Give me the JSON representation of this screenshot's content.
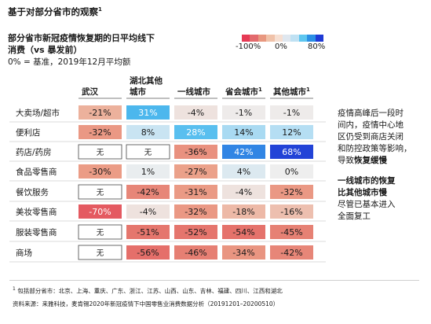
{
  "page": {
    "title": "基于对部分省市的观察",
    "title_superscript": "1"
  },
  "chart_data": {
    "type": "heatmap",
    "title": [
      "部分省市新冠疫情恢复期的日平均线下",
      "消费（vs 暴发前）"
    ],
    "subtitle": "0% = 基准，2019年12月平均额",
    "legend": {
      "ticks": [
        "-100%",
        "0%",
        "80%"
      ],
      "colors": [
        "#e63a55",
        "#e36a6d",
        "#e8977f",
        "#f0c2a9",
        "#f6dfd2",
        "#dfe7ef",
        "#bfe1f3",
        "#5dc6ef",
        "#2a8fe5",
        "#1f3ad5"
      ]
    },
    "columns": [
      {
        "label": "武汉",
        "superscript": ""
      },
      {
        "label": "湖北其他城市",
        "superscript": ""
      },
      {
        "label": "一线城市",
        "superscript": ""
      },
      {
        "label": "省会城市",
        "superscript": "1"
      },
      {
        "label": "其他城市",
        "superscript": "1"
      }
    ],
    "rows": [
      {
        "label": "大卖场/超市",
        "values": [
          -21,
          31,
          -4,
          -1,
          -1
        ],
        "text": [
          "-21%",
          "31%",
          "-4%",
          "-1%",
          "-1%"
        ]
      },
      {
        "label": "便利店",
        "values": [
          -32,
          8,
          28,
          14,
          12
        ],
        "text": [
          "-32%",
          "8%",
          "28%",
          "14%",
          "12%"
        ]
      },
      {
        "label": "药店/药房",
        "values": [
          null,
          null,
          -36,
          42,
          68
        ],
        "text": [
          "无",
          "无",
          "-36%",
          "42%",
          "68%"
        ]
      },
      {
        "label": "食品零售商",
        "values": [
          -30,
          1,
          -27,
          4,
          0
        ],
        "text": [
          "-30%",
          "1%",
          "-27%",
          "4%",
          "0%"
        ]
      },
      {
        "label": "餐饮服务",
        "values": [
          null,
          -42,
          -31,
          -4,
          -32
        ],
        "text": [
          "无",
          "-42%",
          "-31%",
          "-4%",
          "-32%"
        ]
      },
      {
        "label": "美妆零售商",
        "values": [
          -70,
          -4,
          -32,
          -18,
          -16
        ],
        "text": [
          "-70%",
          "-4%",
          "-32%",
          "-18%",
          "-16%"
        ]
      },
      {
        "label": "服装零售商",
        "values": [
          null,
          -51,
          -52,
          -54,
          -45
        ],
        "text": [
          "无",
          "-51%",
          "-52%",
          "-54%",
          "-45%"
        ]
      },
      {
        "label": "商场",
        "values": [
          null,
          -56,
          -46,
          -34,
          -42
        ],
        "text": [
          "无",
          "-56%",
          "-46%",
          "-34%",
          "-42%"
        ]
      }
    ],
    "na_label": "无"
  },
  "notes": {
    "note1": {
      "lines": [
        {
          "text": "疫情高峰后一段时"
        },
        {
          "text": "间内，疫情中心地"
        },
        {
          "text": "区仍受到商店关闭"
        },
        {
          "text": "和防控政策等影响，"
        },
        {
          "text": "导致",
          "bold": "恢复缓慢"
        }
      ]
    },
    "note2": {
      "lines": [
        {
          "text": "",
          "bold": "一线城市的恢复"
        },
        {
          "text": "",
          "bold": "比其他城市慢"
        },
        {
          "text": "尽管已基本进入"
        },
        {
          "text": "全面复工"
        }
      ]
    }
  },
  "footer": {
    "footnote_marker": "1",
    "footnote": "包括部分省市：北京、上海、重庆、广东、浙江、江苏、山西、山东、吉林、福建、四川、江西和湖北",
    "source": "资料来源：来雅科技，麦肯锡2020年新冠疫情下中国零售业消费数据分析（20191201–20200510）"
  }
}
